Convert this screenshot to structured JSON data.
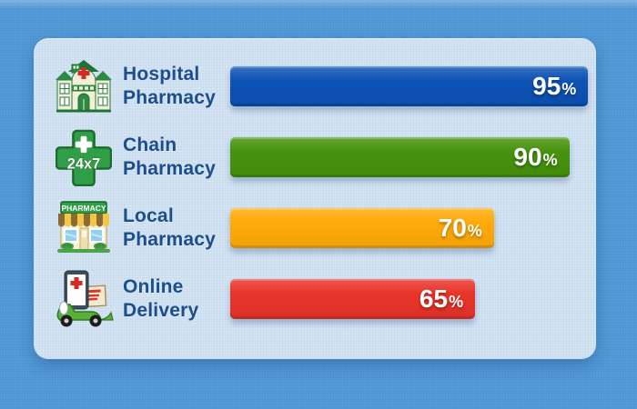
{
  "chart_data": {
    "type": "bar",
    "orientation": "horizontal",
    "title": "",
    "categories": [
      "Hospital Pharmacy",
      "Chain Pharmacy",
      "Local Pharmacy",
      "Online Delivery"
    ],
    "values": [
      95,
      90,
      70,
      65
    ],
    "unit": "%",
    "xlim": [
      0,
      100
    ],
    "gridlines": false,
    "legend": false,
    "rows": [
      {
        "label_line1": "Hospital",
        "label_line2": "Pharmacy",
        "value": 95,
        "value_digits": "95",
        "value_suffix": "%",
        "bar_color": "#0d52b5",
        "icon": "hospital-building-icon"
      },
      {
        "label_line1": "Chain",
        "label_line2": "Pharmacy",
        "value": 90,
        "value_digits": "90",
        "value_suffix": "%",
        "bar_color": "#46930d",
        "icon": "pharmacy-cross-24x7-icon"
      },
      {
        "label_line1": "Local",
        "label_line2": "Pharmacy",
        "value": 70,
        "value_digits": "70",
        "value_suffix": "%",
        "bar_color": "#ffaa07",
        "icon": "pharmacy-storefront-icon"
      },
      {
        "label_line1": "Online",
        "label_line2": "Delivery",
        "value": 65,
        "value_digits": "65",
        "value_suffix": "%",
        "bar_color": "#e9342a",
        "icon": "delivery-scooter-icon"
      }
    ],
    "icon_text": {
      "cross_badge": "24x7",
      "storefront_sign": "PHARMACY"
    },
    "colors": {
      "background": "#5098d6",
      "panel": "#cfe0f1",
      "label_text": "#1d4e8c",
      "value_text": "#ffffff"
    }
  }
}
